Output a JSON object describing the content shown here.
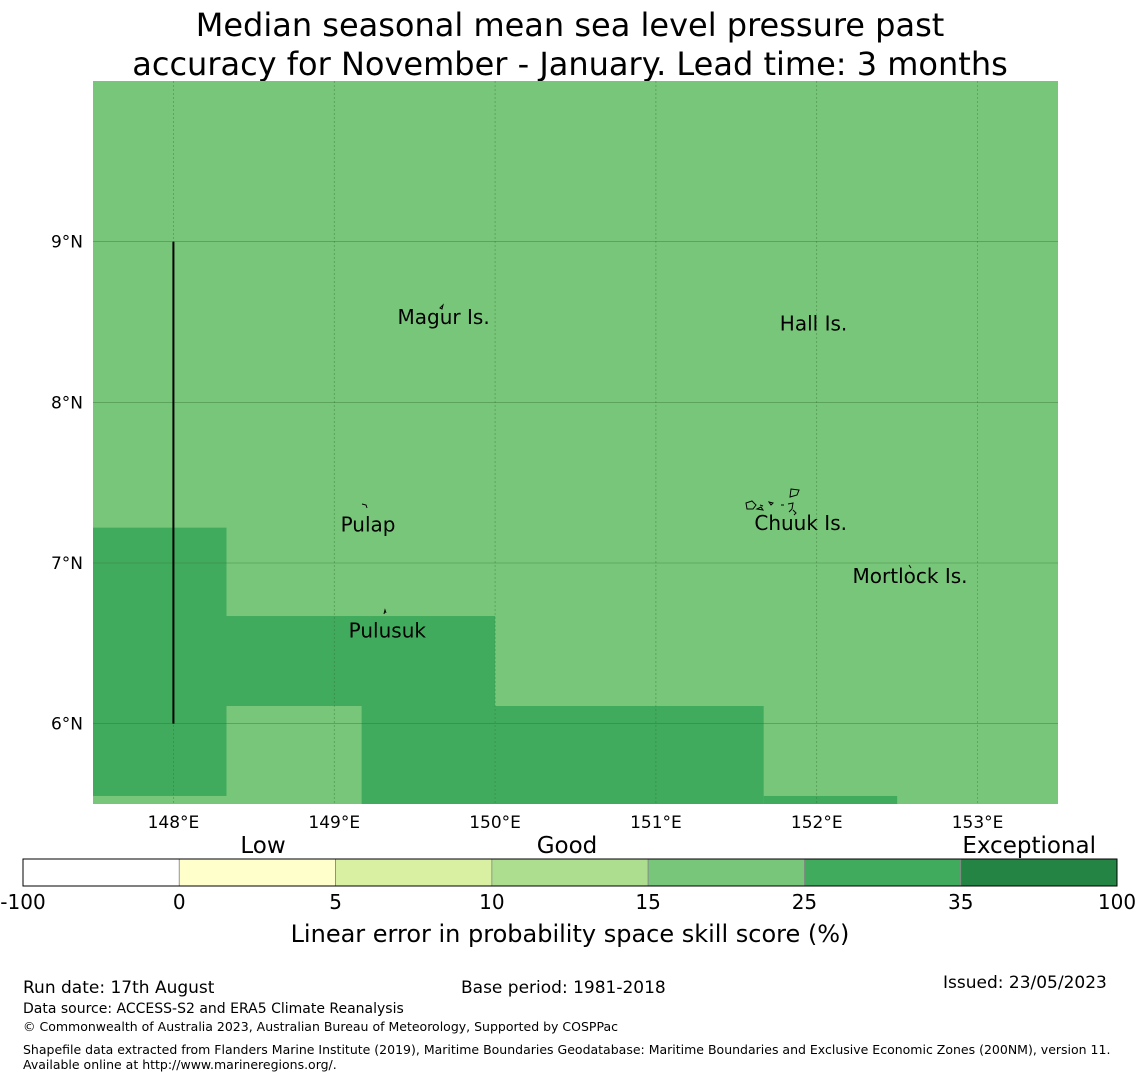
{
  "title": {
    "line1": "Median seasonal mean sea level pressure past",
    "line2": "accuracy for November - January. Lead time: 3 months"
  },
  "map": {
    "x_ticks": [
      "148°E",
      "149°E",
      "150°E",
      "151°E",
      "152°E",
      "153°E"
    ],
    "y_ticks": [
      "9°N",
      "8°N",
      "7°N",
      "6°N"
    ],
    "places": [
      {
        "name": "Magur Is.",
        "lon": 149.68,
        "lat": 8.53
      },
      {
        "name": "Hall Is.",
        "lon": 151.98,
        "lat": 8.49
      },
      {
        "name": "Pulap",
        "lon": 149.21,
        "lat": 7.24
      },
      {
        "name": "Chuuk Is.",
        "lon": 151.9,
        "lat": 7.25
      },
      {
        "name": "Mortlock Is.",
        "lon": 152.58,
        "lat": 6.92
      },
      {
        "name": "Pulusuk",
        "lon": 149.33,
        "lat": 6.58
      }
    ],
    "colors": {
      "good_high": "#78c679",
      "very_good": "#41ab5d",
      "land_outline": "#000000",
      "grid": "#2e6b2e"
    },
    "cells": [
      {
        "lon0": 147.5,
        "lon1": 153.5,
        "lat0": 5.5,
        "lat1": 10.0,
        "category": "15-25"
      },
      {
        "lon0": 147.5,
        "lon1": 148.33,
        "lat0": 5.55,
        "lat1": 7.22,
        "category": "25-35"
      },
      {
        "lon0": 148.33,
        "lon1": 150.0,
        "lat0": 6.11,
        "lat1": 6.67,
        "category": "25-35"
      },
      {
        "lon0": 149.17,
        "lon1": 150.0,
        "lat0": 5.5,
        "lat1": 6.11,
        "category": "25-35"
      },
      {
        "lon0": 150.0,
        "lon1": 151.67,
        "lat0": 5.5,
        "lat1": 6.11,
        "category": "25-35"
      },
      {
        "lon0": 151.67,
        "lon1": 152.5,
        "lat0": 5.5,
        "lat1": 5.55,
        "category": "25-35"
      }
    ],
    "boundary_line": {
      "lon": 148.0,
      "lat0": 6.0,
      "lat1": 9.0
    }
  },
  "legend": {
    "categories": [
      "Low",
      "Good",
      "Exceptional"
    ],
    "ticks": [
      "-100",
      "0",
      "5",
      "10",
      "15",
      "25",
      "35",
      "100"
    ],
    "colors": [
      "#ffffff",
      "#ffffcc",
      "#d9f0a3",
      "#addd8e",
      "#78c679",
      "#41ab5d",
      "#238443"
    ],
    "label": "Linear error in probability space skill score (%)"
  },
  "footer": {
    "run_date": "Run date: 17th August",
    "base_period": "Base period: 1981-2018",
    "issued": "Issued: 23/05/2023",
    "data_source": "Data source: ACCESS-S2 and ERA5 Climate Reanalysis",
    "copyright": "© Commonwealth of Australia 2023, Australian Bureau of Meteorology, Supported by COSPPac",
    "shapefile": "Shapefile data extracted from Flanders Marine Institute (2019), Maritime Boundaries Geodatabase: Maritime Boundaries and Exclusive Economic Zones (200NM), version 11. Available online at http://www.marineregions.org/."
  }
}
